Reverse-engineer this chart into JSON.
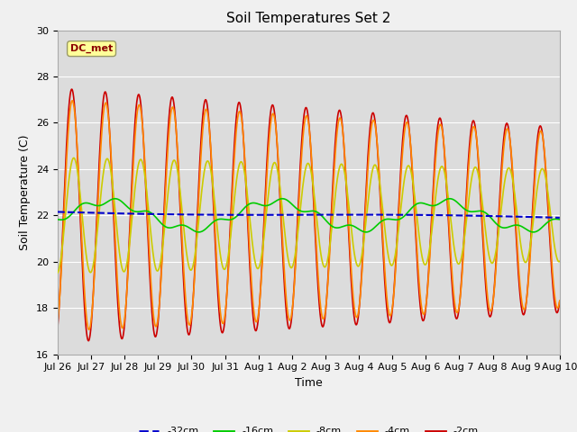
{
  "title": "Soil Temperatures Set 2",
  "xlabel": "Time",
  "ylabel": "Soil Temperature (C)",
  "ylim": [
    16,
    30
  ],
  "background_color": "#f0f0f0",
  "plot_bg_color": "#dcdcdc",
  "annotation_text": "DC_met",
  "annotation_color": "#8b0000",
  "annotation_bg": "#ffff99",
  "x_tick_labels": [
    "Jul 26",
    "Jul 27",
    "Jul 28",
    "Jul 29",
    "Jul 30",
    "Jul 31",
    "Aug 1",
    "Aug 2",
    "Aug 3",
    "Aug 4",
    "Aug 5",
    "Aug 6",
    "Aug 7",
    "Aug 8",
    "Aug 9",
    "Aug 10"
  ],
  "legend_labels": [
    "-32cm",
    "-16cm",
    "-8cm",
    "-4cm",
    "-2cm"
  ],
  "legend_colors": [
    "#0000cc",
    "#00cc00",
    "#cccc00",
    "#ff8800",
    "#cc0000"
  ],
  "legend_linestyles": [
    "--",
    "-",
    "-",
    "-",
    "-"
  ],
  "series_colors": {
    "d32": "#0000cc",
    "d16": "#00cc00",
    "d8": "#cccc00",
    "d4": "#ff8800",
    "d2": "#cc0000"
  },
  "yticks": [
    16,
    18,
    20,
    22,
    24,
    26,
    28,
    30
  ],
  "grid_color": "#ffffff",
  "spine_color": "#aaaaaa"
}
